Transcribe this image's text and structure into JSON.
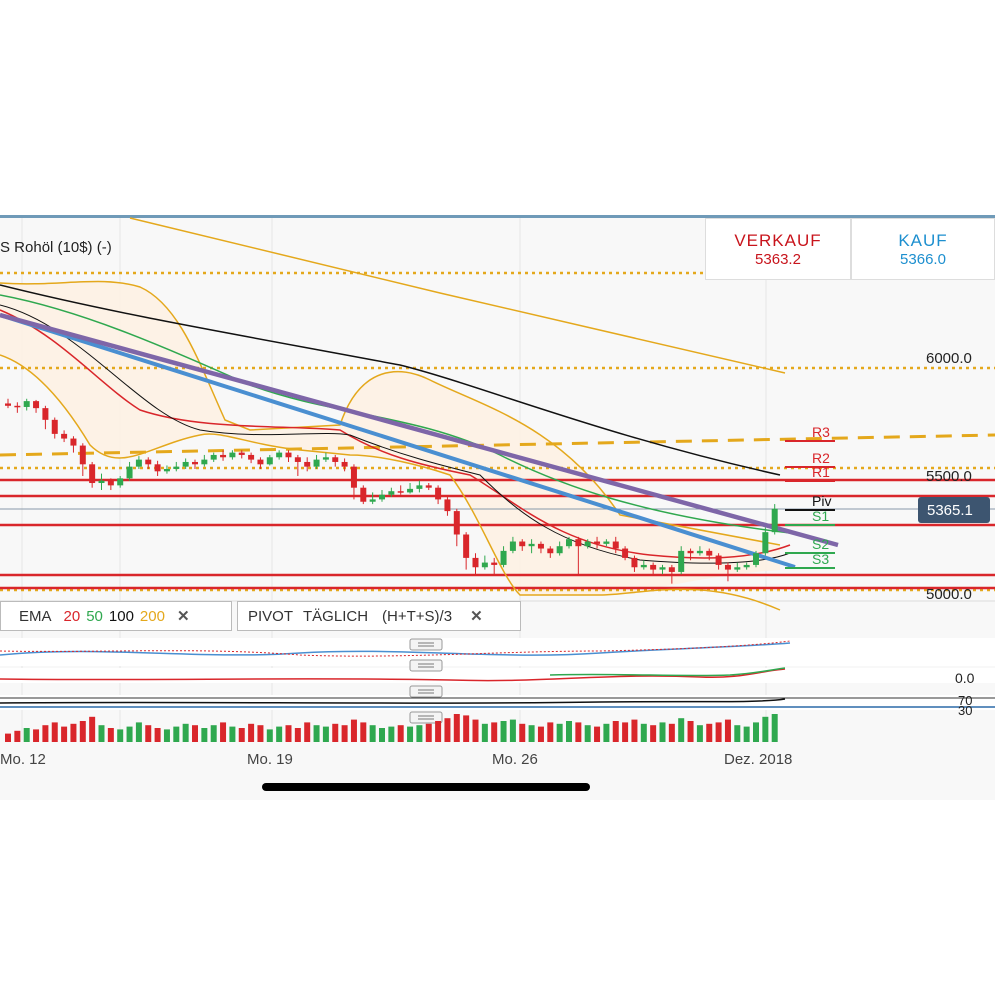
{
  "instrument": "S Rohöl (10$) (-)",
  "sell": {
    "label": "VERKAUF",
    "price": "5363.2"
  },
  "buy": {
    "label": "KAUF",
    "price": "5366.0"
  },
  "current_price": "5365.1",
  "price_axis": [
    "6000.0",
    "5500.0",
    "5000.0"
  ],
  "pivot_labels": [
    "R3",
    "R2",
    "R1",
    "Piv",
    "S1",
    "S2",
    "S3"
  ],
  "ema_panel": {
    "name": "EMA",
    "periods": [
      "20",
      "50",
      "100",
      "200"
    ],
    "close": "✕"
  },
  "pivot_panel": {
    "name": "PIVOT",
    "mode": "TÄGLICH",
    "formula": "(H+T+S)/3",
    "close": "✕"
  },
  "sub_axis": {
    "macd": "0.0",
    "rsi_top": "70",
    "rsi_bottom": "30"
  },
  "x_axis": [
    "Mo. 12",
    "Mo. 19",
    "Mo. 26",
    "Dez. 2018"
  ],
  "colors": {
    "up": "#2fa84f",
    "down": "#d9262b",
    "ema20": "#d9262b",
    "ema50": "#2fa84f",
    "ema100": "#111111",
    "ema200": "#e4a81c",
    "trend1": "#4a8fd1",
    "trend2": "#7e66a8",
    "pivot": "#d9262b"
  },
  "candles": [
    [
      5810,
      5800,
      5830,
      5790
    ],
    [
      5800,
      5795,
      5815,
      5770
    ],
    [
      5795,
      5820,
      5830,
      5780
    ],
    [
      5820,
      5790,
      5825,
      5770
    ],
    [
      5790,
      5740,
      5800,
      5700
    ],
    [
      5740,
      5680,
      5750,
      5660
    ],
    [
      5680,
      5660,
      5695,
      5645
    ],
    [
      5660,
      5630,
      5670,
      5600
    ],
    [
      5630,
      5550,
      5640,
      5500
    ],
    [
      5550,
      5470,
      5560,
      5450
    ],
    [
      5470,
      5480,
      5510,
      5440
    ],
    [
      5480,
      5460,
      5490,
      5440
    ],
    [
      5460,
      5490,
      5500,
      5450
    ],
    [
      5490,
      5540,
      5560,
      5480
    ],
    [
      5540,
      5570,
      5585,
      5530
    ],
    [
      5570,
      5550,
      5580,
      5530
    ],
    [
      5550,
      5520,
      5565,
      5500
    ],
    [
      5520,
      5530,
      5545,
      5510
    ],
    [
      5530,
      5540,
      5560,
      5520
    ],
    [
      5540,
      5560,
      5575,
      5530
    ],
    [
      5560,
      5550,
      5570,
      5530
    ],
    [
      5550,
      5570,
      5590,
      5540
    ],
    [
      5570,
      5590,
      5600,
      5560
    ],
    [
      5590,
      5580,
      5610,
      5565
    ],
    [
      5580,
      5600,
      5610,
      5570
    ],
    [
      5600,
      5590,
      5610,
      5575
    ],
    [
      5590,
      5570,
      5600,
      5555
    ],
    [
      5570,
      5550,
      5580,
      5530
    ],
    [
      5550,
      5580,
      5590,
      5545
    ],
    [
      5580,
      5600,
      5610,
      5570
    ],
    [
      5600,
      5580,
      5610,
      5560
    ],
    [
      5580,
      5560,
      5590,
      5500
    ],
    [
      5560,
      5540,
      5580,
      5520
    ],
    [
      5540,
      5570,
      5590,
      5530
    ],
    [
      5570,
      5580,
      5600,
      5560
    ],
    [
      5580,
      5560,
      5590,
      5540
    ],
    [
      5560,
      5540,
      5575,
      5520
    ],
    [
      5540,
      5450,
      5550,
      5400
    ],
    [
      5450,
      5390,
      5460,
      5380
    ],
    [
      5390,
      5400,
      5430,
      5380
    ],
    [
      5400,
      5420,
      5440,
      5390
    ],
    [
      5420,
      5435,
      5450,
      5410
    ],
    [
      5435,
      5430,
      5460,
      5420
    ],
    [
      5430,
      5445,
      5470,
      5425
    ],
    [
      5445,
      5460,
      5480,
      5430
    ],
    [
      5460,
      5450,
      5470,
      5440
    ],
    [
      5450,
      5400,
      5460,
      5380
    ],
    [
      5400,
      5350,
      5410,
      5330
    ],
    [
      5350,
      5250,
      5360,
      5200
    ],
    [
      5250,
      5150,
      5260,
      5100
    ],
    [
      5150,
      5110,
      5170,
      5080
    ],
    [
      5110,
      5130,
      5160,
      5100
    ],
    [
      5130,
      5120,
      5150,
      5080
    ],
    [
      5120,
      5180,
      5200,
      5110
    ],
    [
      5180,
      5220,
      5240,
      5170
    ],
    [
      5220,
      5200,
      5230,
      5180
    ],
    [
      5200,
      5210,
      5230,
      5170
    ],
    [
      5210,
      5190,
      5220,
      5170
    ],
    [
      5190,
      5170,
      5200,
      5150
    ],
    [
      5170,
      5200,
      5220,
      5160
    ],
    [
      5200,
      5230,
      5240,
      5190
    ],
    [
      5230,
      5200,
      5240,
      5080
    ],
    [
      5200,
      5220,
      5230,
      5190
    ],
    [
      5220,
      5210,
      5240,
      5190
    ],
    [
      5210,
      5220,
      5230,
      5200
    ],
    [
      5220,
      5190,
      5240,
      5170
    ],
    [
      5190,
      5150,
      5200,
      5140
    ],
    [
      5150,
      5110,
      5160,
      5090
    ],
    [
      5110,
      5120,
      5140,
      5100
    ],
    [
      5120,
      5100,
      5130,
      5080
    ],
    [
      5100,
      5110,
      5120,
      5080
    ],
    [
      5110,
      5090,
      5120,
      5040
    ],
    [
      5090,
      5180,
      5200,
      5080
    ],
    [
      5180,
      5170,
      5190,
      5140
    ],
    [
      5170,
      5180,
      5200,
      5160
    ],
    [
      5180,
      5160,
      5190,
      5140
    ],
    [
      5160,
      5120,
      5170,
      5100
    ],
    [
      5120,
      5100,
      5130,
      5050
    ],
    [
      5100,
      5110,
      5130,
      5090
    ],
    [
      5110,
      5120,
      5130,
      5100
    ],
    [
      5120,
      5170,
      5180,
      5110
    ],
    [
      5170,
      5260,
      5280,
      5160
    ],
    [
      5260,
      5360,
      5380,
      5250
    ]
  ],
  "volume": [
    6,
    8,
    10,
    9,
    12,
    14,
    11,
    13,
    15,
    18,
    12,
    10,
    9,
    11,
    14,
    12,
    10,
    9,
    11,
    13,
    12,
    10,
    12,
    14,
    11,
    10,
    13,
    12,
    9,
    11,
    12,
    10,
    14,
    12,
    11,
    13,
    12,
    16,
    14,
    12,
    10,
    11,
    12,
    11,
    12,
    13,
    15,
    17,
    20,
    19,
    16,
    13,
    14,
    15,
    16,
    13,
    12,
    11,
    14,
    13,
    15,
    14,
    12,
    11,
    13,
    15,
    14,
    16,
    13,
    12,
    14,
    13,
    17,
    15,
    12,
    13,
    14,
    16,
    12,
    11,
    14,
    18,
    20
  ]
}
